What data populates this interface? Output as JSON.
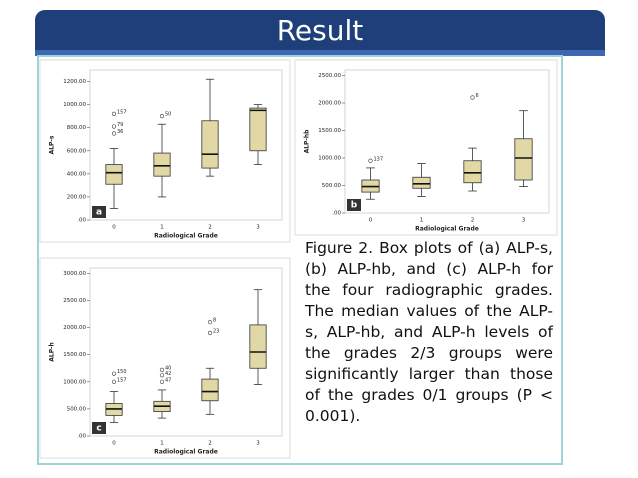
{
  "title": "Result",
  "caption": "Figure 2. Box plots of (a) ALP-s, (b) ALP-hb, and (c) ALP-h for the four radiographic grades. The median values of the ALP-s, ALP-hb, and ALP-h levels of the grades 2/3 groups were significantly larger than those of the grades 0/1 groups (P < 0.001).",
  "chart_data": [
    {
      "type": "box",
      "panel": "a",
      "y_label": "ALP-s",
      "x_label": "Radiological Grade",
      "categories": [
        "0",
        "1",
        "2",
        "3"
      ],
      "ylim": [
        0,
        1300
      ],
      "yticks": [
        {
          "value": 0,
          "label": ".00"
        },
        {
          "value": 200,
          "label": "200.00"
        },
        {
          "value": 400,
          "label": "400.00"
        },
        {
          "value": 600,
          "label": "600.00"
        },
        {
          "value": 800,
          "label": "800.00"
        },
        {
          "value": 1000,
          "label": "1000.00"
        },
        {
          "value": 1200,
          "label": "1200.00"
        }
      ],
      "boxes": [
        {
          "min": 100,
          "q1": 310,
          "median": 410,
          "q3": 480,
          "max": 620,
          "outliers": [
            {
              "value": 920,
              "label": "157"
            },
            {
              "value": 810,
              "label": "79"
            },
            {
              "value": 750,
              "label": "36"
            }
          ]
        },
        {
          "min": 200,
          "q1": 380,
          "median": 470,
          "q3": 580,
          "max": 830,
          "outliers": [
            {
              "value": 900,
              "label": "50"
            }
          ]
        },
        {
          "min": 380,
          "q1": 450,
          "median": 570,
          "q3": 860,
          "max": 1220,
          "outliers": []
        },
        {
          "min": 480,
          "q1": 600,
          "median": 950,
          "q3": 970,
          "max": 1000,
          "outliers": []
        }
      ]
    },
    {
      "type": "box",
      "panel": "b",
      "y_label": "ALP-hb",
      "x_label": "Radiological Grade",
      "categories": [
        "0",
        "1",
        "2",
        "3"
      ],
      "ylim": [
        0,
        2600
      ],
      "yticks": [
        {
          "value": 0,
          "label": ".00"
        },
        {
          "value": 500,
          "label": "500.00"
        },
        {
          "value": 1000,
          "label": "1000.00"
        },
        {
          "value": 1500,
          "label": "1500.00"
        },
        {
          "value": 2000,
          "label": "2000.00"
        },
        {
          "value": 2500,
          "label": "2500.00"
        }
      ],
      "boxes": [
        {
          "min": 250,
          "q1": 380,
          "median": 480,
          "q3": 600,
          "max": 820,
          "outliers": [
            {
              "value": 950,
              "label": "137"
            }
          ]
        },
        {
          "min": 300,
          "q1": 450,
          "median": 530,
          "q3": 650,
          "max": 900,
          "outliers": []
        },
        {
          "min": 400,
          "q1": 550,
          "median": 730,
          "q3": 950,
          "max": 1180,
          "outliers": [
            {
              "value": 2100,
              "label": "6"
            }
          ]
        },
        {
          "min": 480,
          "q1": 600,
          "median": 1000,
          "q3": 1350,
          "max": 1860,
          "outliers": []
        }
      ]
    },
    {
      "type": "box",
      "panel": "c",
      "y_label": "ALP-h",
      "x_label": "Radiological Grade",
      "categories": [
        "0",
        "1",
        "2",
        "3"
      ],
      "ylim": [
        0,
        3100
      ],
      "yticks": [
        {
          "value": 0,
          "label": ".00"
        },
        {
          "value": 500,
          "label": "500.00"
        },
        {
          "value": 1000,
          "label": "1000.00"
        },
        {
          "value": 1500,
          "label": "1500.00"
        },
        {
          "value": 2000,
          "label": "2000.00"
        },
        {
          "value": 2500,
          "label": "2500.00"
        },
        {
          "value": 3000,
          "label": "3000.00"
        }
      ],
      "boxes": [
        {
          "min": 250,
          "q1": 380,
          "median": 500,
          "q3": 600,
          "max": 820,
          "outliers": [
            {
              "value": 1150,
              "label": "150"
            },
            {
              "value": 1000,
              "label": "157"
            }
          ]
        },
        {
          "min": 330,
          "q1": 450,
          "median": 550,
          "q3": 640,
          "max": 850,
          "outliers": [
            {
              "value": 1220,
              "label": "40"
            },
            {
              "value": 1120,
              "label": "42"
            },
            {
              "value": 1000,
              "label": "47"
            }
          ]
        },
        {
          "min": 400,
          "q1": 650,
          "median": 820,
          "q3": 1050,
          "max": 1250,
          "outliers": [
            {
              "value": 2100,
              "label": "8"
            },
            {
              "value": 1900,
              "label": "23"
            }
          ]
        },
        {
          "min": 950,
          "q1": 1250,
          "median": 1550,
          "q3": 2050,
          "max": 2700,
          "outliers": []
        }
      ]
    }
  ]
}
